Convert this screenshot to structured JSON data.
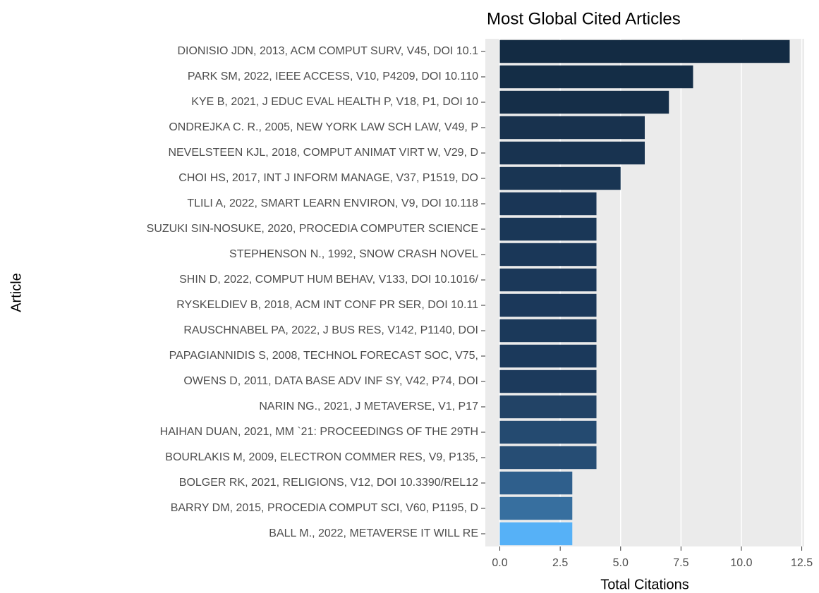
{
  "chart_data": {
    "type": "bar",
    "orientation": "horizontal",
    "title": "Most Global Cited Articles",
    "xlabel": "Total Citations",
    "ylabel": "Article",
    "categories": [
      "DIONISIO JDN, 2013, ACM COMPUT SURV, V45, DOI 10.1",
      "PARK SM, 2022, IEEE ACCESS, V10, P4209, DOI 10.110",
      "KYE B, 2021, J EDUC EVAL HEALTH P, V18, P1, DOI 10",
      "ONDREJKA C. R., 2005, NEW YORK LAW SCH LAW, V49, P",
      "NEVELSTEEN KJL, 2018, COMPUT ANIMAT VIRT W, V29, D",
      "CHOI HS, 2017, INT J INFORM MANAGE, V37, P1519, DO",
      "TLILI A, 2022, SMART LEARN ENVIRON, V9, DOI 10.118",
      "SUZUKI SIN-NOSUKE, 2020, PROCEDIA COMPUTER SCIENCE",
      "STEPHENSON N., 1992, SNOW CRASH NOVEL",
      "SHIN D, 2022, COMPUT HUM BEHAV, V133, DOI 10.1016/",
      "RYSKELDIEV B, 2018, ACM INT CONF PR SER, DOI 10.11",
      "RAUSCHNABEL PA, 2022, J BUS RES, V142, P1140, DOI",
      "PAPAGIANNIDIS S, 2008, TECHNOL FORECAST SOC, V75,",
      "OWENS D, 2011, DATA BASE ADV INF SY, V42, P74, DOI",
      "NARIN NG., 2021, J METAVERSE, V1, P17",
      "HAIHAN DUAN, 2021, MM `21: PROCEEDINGS OF THE 29TH",
      "BOURLAKIS M, 2009, ELECTRON COMMER RES, V9, P135,",
      "BOLGER RK, 2021, RELIGIONS, V12, DOI 10.3390/REL12",
      "BARRY DM, 2015, PROCEDIA COMPUT SCI, V60, P1195, D",
      "BALL M., 2022, METAVERSE IT WILL RE"
    ],
    "values": [
      12,
      8,
      7,
      6,
      6,
      5,
      4,
      4,
      4,
      4,
      4,
      4,
      4,
      4,
      4,
      4,
      4,
      3,
      3,
      3
    ],
    "colors": [
      "#132b43",
      "#142d46",
      "#152e48",
      "#18324e",
      "#183350",
      "#193553",
      "#1a3656",
      "#1a3757",
      "#1a3758",
      "#1b3859",
      "#1b385a",
      "#1b395a",
      "#1b395b",
      "#1c3a5c",
      "#224366",
      "#244a70",
      "#264d74",
      "#2f5f8c",
      "#376f9f",
      "#56b1f7"
    ],
    "xlim": [
      -0.6,
      12.6
    ],
    "xticks": [
      {
        "value": 0,
        "label": "0.0"
      },
      2.5,
      {
        "value": 5,
        "label": "5.0"
      },
      7.5,
      {
        "value": 10,
        "label": "10.0"
      },
      12.5
    ],
    "grid": true
  }
}
